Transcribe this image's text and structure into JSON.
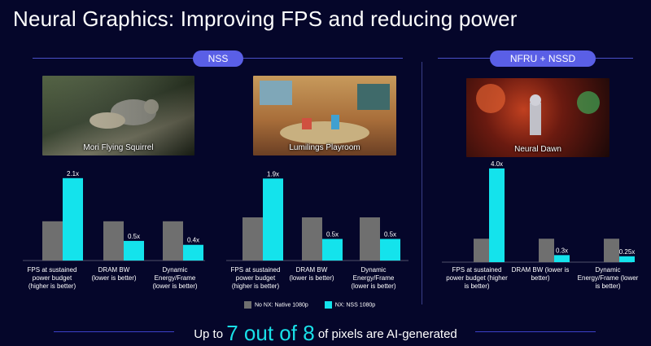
{
  "title": "Neural Graphics: Improving FPS and reducing power",
  "sections": [
    {
      "label": "NSS"
    },
    {
      "label": "NFRU + NSSD"
    }
  ],
  "games": [
    {
      "caption": "Mori Flying Squirrel"
    },
    {
      "caption": "Lumilings Playroom"
    },
    {
      "caption": "Neural Dawn"
    }
  ],
  "colors": {
    "baseline": "#6f6f6f",
    "nx": "#14e3ec",
    "accent": "#5a5fe6"
  },
  "chart_data": [
    {
      "type": "bar",
      "title": "Mori Flying Squirrel",
      "categories": [
        "FPS at sustained power budget (higher is better)",
        "DRAM BW (lower is better)",
        "Dynamic Energy/Frame (lower is better)"
      ],
      "series": [
        {
          "name": "No NX: Native 1080p",
          "values": [
            1.0,
            1.0,
            1.0
          ],
          "labels": [
            "",
            "",
            ""
          ]
        },
        {
          "name": "NX: NSS 1080p",
          "values": [
            2.1,
            0.5,
            0.4
          ],
          "labels": [
            "2.1x",
            "0.5x",
            "0.4x"
          ]
        }
      ],
      "ylim": [
        0,
        2.2
      ]
    },
    {
      "type": "bar",
      "title": "Lumilings Playroom",
      "categories": [
        "FPS at sustained power budget (higher is better)",
        "DRAM BW (lower is better)",
        "Dynamic Energy/Frame (lower is better)"
      ],
      "series": [
        {
          "name": "No NX: Native 1080p",
          "values": [
            1.0,
            1.0,
            1.0
          ],
          "labels": [
            "",
            "",
            ""
          ]
        },
        {
          "name": "NX: NSS 1080p",
          "values": [
            1.9,
            0.5,
            0.5
          ],
          "labels": [
            "1.9x",
            "0.5x",
            "0.5x"
          ]
        }
      ],
      "ylim": [
        0,
        2.0
      ]
    },
    {
      "type": "bar",
      "title": "Neural Dawn",
      "categories": [
        "FPS at sustained power budget (higher is better)",
        "DRAM BW (lower is better)",
        "Dynamic Energy/Frame (lower is better)"
      ],
      "series": [
        {
          "name": "No NX: Native 1080p",
          "values": [
            1.0,
            1.0,
            1.0
          ],
          "labels": [
            "",
            "",
            ""
          ]
        },
        {
          "name": "NX",
          "values": [
            4.0,
            0.3,
            0.25
          ],
          "labels": [
            "4.0x",
            "0.3x",
            "0.25x"
          ]
        }
      ],
      "ylim": [
        0,
        4.1
      ]
    }
  ],
  "category_labels": [
    [
      "FPS at sustained",
      "power budget",
      "(higher is better)"
    ],
    [
      "DRAM BW",
      "(lower is better)"
    ],
    [
      "Dynamic",
      "Energy/Frame",
      "(lower is better)"
    ]
  ],
  "category_labels_3": [
    [
      "FPS at sustained",
      "power budget (higher",
      "is better)"
    ],
    [
      "DRAM BW (lower is",
      "better)"
    ],
    [
      "Dynamic",
      "Energy/Frame (lower",
      "is better)"
    ]
  ],
  "legend": [
    {
      "label": "No NX: Native 1080p"
    },
    {
      "label": "NX: NSS 1080p"
    }
  ],
  "footer": {
    "prefix": "Up to",
    "highlight": "7 out of 8",
    "suffix": "of pixels are AI-generated"
  }
}
